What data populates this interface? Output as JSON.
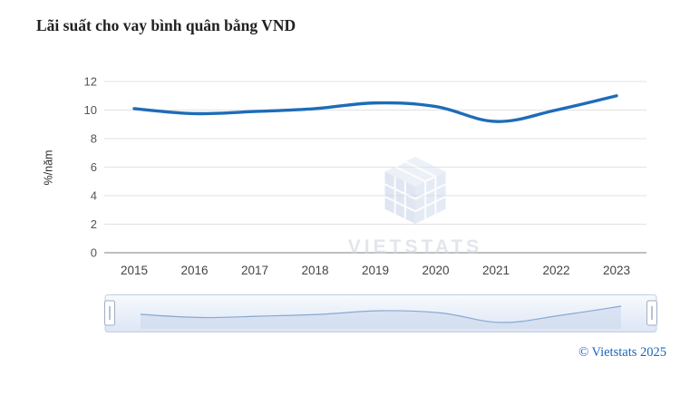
{
  "title": "Lãi suất cho vay bình quân bằng VND",
  "watermark": {
    "text": "VIETSTATS"
  },
  "footer": {
    "credit": "© Vietstats 2025"
  },
  "colors": {
    "line": "#1e6cb8",
    "grid": "#e2e2e2",
    "axis": "#999999",
    "tick_text": "#555555",
    "x_tick_text": "#444444",
    "credit": "#1a66b8",
    "navigator_fill": "#cdd9ec",
    "navigator_line": "#86a9d2"
  },
  "chart_data": {
    "type": "line",
    "title": "Lãi suất cho vay bình quân bằng VND",
    "x": [
      "2015",
      "2016",
      "2017",
      "2018",
      "2019",
      "2020",
      "2021",
      "2022",
      "2023"
    ],
    "series": [
      {
        "name": "Lãi suất cho vay bình quân bằng VND",
        "values": [
          10.1,
          9.75,
          9.9,
          10.1,
          10.5,
          10.25,
          9.2,
          10.0,
          11.0
        ]
      }
    ],
    "xlabel": "",
    "ylabel": "%/năm",
    "ylim": [
      0,
      12
    ],
    "yticks": [
      0,
      2,
      4,
      6,
      8,
      10,
      12
    ],
    "grid": true,
    "legend": false,
    "navigator": true
  }
}
